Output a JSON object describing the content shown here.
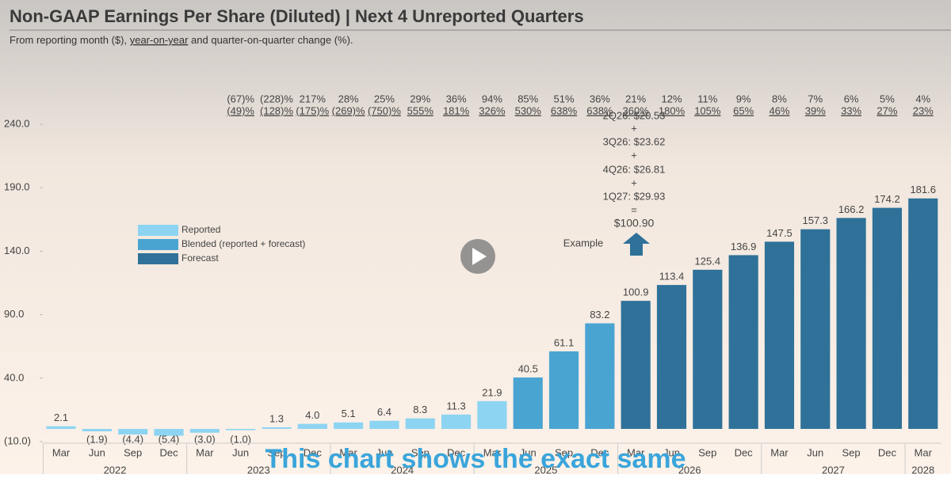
{
  "chart_data": {
    "type": "bar",
    "title": "Non-GAAP Earnings Per Share (Diluted) | Next 4 Unreported Quarters",
    "subtitle_parts": [
      "From reporting month ($), ",
      "year-on-year",
      " and quarter-on-quarter change (%)."
    ],
    "categories": [
      "Mar",
      "Jun",
      "Sep",
      "Dec",
      "Mar",
      "Jun",
      "Sep",
      "Dec",
      "Mar",
      "Jun",
      "Sep",
      "Dec",
      "Mar",
      "Jun",
      "Sep",
      "Dec",
      "Mar",
      "Jun",
      "Sep",
      "Dec",
      "Mar",
      "Jun",
      "Sep",
      "Dec",
      "Mar"
    ],
    "category_years": [
      "2022",
      "2022",
      "2022",
      "2022",
      "2023",
      "2023",
      "2023",
      "2023",
      "2024",
      "2024",
      "2024",
      "2024",
      "2025",
      "2025",
      "2025",
      "2025",
      "2026",
      "2026",
      "2026",
      "2026",
      "2027",
      "2027",
      "2027",
      "2027",
      "2028"
    ],
    "series": [
      {
        "name": "Reported",
        "color": "#8dd4f2",
        "values": [
          2.1,
          -1.9,
          -4.4,
          -5.4,
          -3.0,
          -1.0,
          1.3,
          4.0,
          5.1,
          6.4,
          8.3,
          11.3,
          21.9,
          null,
          null,
          null,
          null,
          null,
          null,
          null,
          null,
          null,
          null,
          null,
          null
        ],
        "value_labels": [
          "2.1",
          "(1.9)",
          "(4.4)",
          "(5.4)",
          "(3.0)",
          "(1.0)",
          "1.3",
          "4.0",
          "5.1",
          "6.4",
          "8.3",
          "11.3",
          "21.9",
          null,
          null,
          null,
          null,
          null,
          null,
          null,
          null,
          null,
          null,
          null,
          null
        ]
      },
      {
        "name": "Blended (reported + forecast)",
        "color": "#4aa4d2",
        "values": [
          null,
          null,
          null,
          null,
          null,
          null,
          null,
          null,
          null,
          null,
          null,
          null,
          null,
          40.5,
          61.1,
          83.2,
          null,
          null,
          null,
          null,
          null,
          null,
          null,
          null,
          null
        ],
        "value_labels": [
          null,
          null,
          null,
          null,
          null,
          null,
          null,
          null,
          null,
          null,
          null,
          null,
          null,
          "40.5",
          "61.1",
          "83.2",
          null,
          null,
          null,
          null,
          null,
          null,
          null,
          null,
          null
        ]
      },
      {
        "name": "Forecast",
        "color": "#2f7199",
        "values": [
          null,
          null,
          null,
          null,
          null,
          null,
          null,
          null,
          null,
          null,
          null,
          null,
          null,
          null,
          null,
          null,
          100.9,
          113.4,
          125.4,
          136.9,
          147.5,
          157.3,
          166.2,
          174.2,
          181.6
        ],
        "value_labels": [
          null,
          null,
          null,
          null,
          null,
          null,
          null,
          null,
          null,
          null,
          null,
          null,
          null,
          null,
          null,
          null,
          "100.9",
          "113.4",
          "125.4",
          "136.9",
          "147.5",
          "157.3",
          "166.2",
          "174.2",
          "181.6"
        ]
      }
    ],
    "qoq_labels": [
      null,
      null,
      null,
      null,
      null,
      "(67)%",
      "(228)%",
      "217%",
      "28%",
      "25%",
      "29%",
      "36%",
      "94%",
      "85%",
      "51%",
      "36%",
      "21%",
      "12%",
      "11%",
      "9%",
      "8%",
      "7%",
      "6%",
      "5%",
      "4%"
    ],
    "yoy_labels": [
      null,
      null,
      null,
      null,
      null,
      "(49)%",
      "(128)%",
      "(175)%",
      "(269)%",
      "(750)%",
      "555%",
      "181%",
      "326%",
      "530%",
      "638%",
      "638%",
      "360%",
      "180%",
      "105%",
      "65%",
      "46%",
      "39%",
      "33%",
      "27%",
      "23%"
    ],
    "ylim": [
      -10,
      260
    ],
    "yticks": [
      {
        "value": -10,
        "label": "(10.0)"
      },
      {
        "value": 40,
        "label": "40.0"
      },
      {
        "value": 90,
        "label": "90.0"
      },
      {
        "value": 140,
        "label": "140.0"
      },
      {
        "value": 190,
        "label": "190.0"
      },
      {
        "value": 240,
        "label": "240.0"
      }
    ],
    "grid": false,
    "annotation_lines": [
      "2Q26: $20.53",
      "+",
      "3Q26: $23.62",
      "+",
      "4Q26: $26.81",
      "+",
      "1Q27: $29.93",
      "=",
      "$100.90"
    ],
    "annotation_label": "Example",
    "caption": "This chart shows the exact same"
  }
}
